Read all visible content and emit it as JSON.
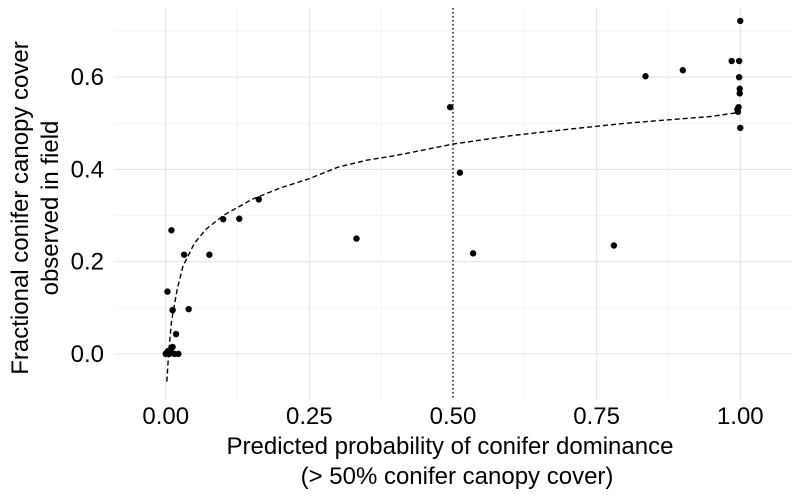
{
  "chart_data": {
    "type": "scatter",
    "title": "",
    "xlabel_lines": [
      "Predicted probability of conifer dominance",
      "(> 50% conifer canopy cover)"
    ],
    "ylabel_lines": [
      "Fractional conifer canopy cover",
      "observed in field"
    ],
    "xlim": [
      -0.09,
      1.09
    ],
    "ylim": [
      -0.1,
      0.75
    ],
    "x_ticks": [
      0.0,
      0.25,
      0.5,
      0.75,
      1.0
    ],
    "x_tick_labels": [
      "0.00",
      "0.25",
      "0.50",
      "0.75",
      "1.00"
    ],
    "y_ticks": [
      0.0,
      0.2,
      0.4,
      0.6
    ],
    "y_tick_labels": [
      "0.0",
      "0.2",
      "0.4",
      "0.6"
    ],
    "grid": true,
    "vline": {
      "x": 0.5,
      "style": "dotted"
    },
    "points": [
      {
        "x": 0.0,
        "y": 0.0
      },
      {
        "x": 0.002,
        "y": 0.003
      },
      {
        "x": 0.004,
        "y": 0.006
      },
      {
        "x": 0.006,
        "y": 0.0
      },
      {
        "x": 0.008,
        "y": 0.009
      },
      {
        "x": 0.01,
        "y": 0.002
      },
      {
        "x": 0.012,
        "y": 0.015
      },
      {
        "x": 0.015,
        "y": 0.0
      },
      {
        "x": 0.003,
        "y": 0.135
      },
      {
        "x": 0.01,
        "y": 0.268
      },
      {
        "x": 0.012,
        "y": 0.095
      },
      {
        "x": 0.018,
        "y": 0.043
      },
      {
        "x": 0.022,
        "y": 0.0
      },
      {
        "x": 0.032,
        "y": 0.215
      },
      {
        "x": 0.04,
        "y": 0.097
      },
      {
        "x": 0.076,
        "y": 0.215
      },
      {
        "x": 0.1,
        "y": 0.292
      },
      {
        "x": 0.128,
        "y": 0.293
      },
      {
        "x": 0.162,
        "y": 0.335
      },
      {
        "x": 0.332,
        "y": 0.25
      },
      {
        "x": 0.495,
        "y": 0.535
      },
      {
        "x": 0.512,
        "y": 0.393
      },
      {
        "x": 0.535,
        "y": 0.218
      },
      {
        "x": 0.78,
        "y": 0.235
      },
      {
        "x": 0.835,
        "y": 0.602
      },
      {
        "x": 0.9,
        "y": 0.615
      },
      {
        "x": 0.985,
        "y": 0.635
      },
      {
        "x": 0.995,
        "y": 0.53
      },
      {
        "x": 0.996,
        "y": 0.525
      },
      {
        "x": 0.997,
        "y": 0.535
      },
      {
        "x": 0.998,
        "y": 0.6
      },
      {
        "x": 0.998,
        "y": 0.635
      },
      {
        "x": 0.999,
        "y": 0.575
      },
      {
        "x": 0.999,
        "y": 0.565
      },
      {
        "x": 1.0,
        "y": 0.722
      },
      {
        "x": 1.0,
        "y": 0.49
      }
    ],
    "trend_line": {
      "style": "dashed",
      "points": [
        {
          "x": 0.002,
          "y": -0.06
        },
        {
          "x": 0.005,
          "y": 0.0
        },
        {
          "x": 0.01,
          "y": 0.07
        },
        {
          "x": 0.02,
          "y": 0.14
        },
        {
          "x": 0.03,
          "y": 0.19
        },
        {
          "x": 0.05,
          "y": 0.24
        },
        {
          "x": 0.07,
          "y": 0.27
        },
        {
          "x": 0.1,
          "y": 0.3
        },
        {
          "x": 0.15,
          "y": 0.335
        },
        {
          "x": 0.2,
          "y": 0.36
        },
        {
          "x": 0.25,
          "y": 0.38
        },
        {
          "x": 0.3,
          "y": 0.405
        },
        {
          "x": 0.35,
          "y": 0.42
        },
        {
          "x": 0.4,
          "y": 0.43
        },
        {
          "x": 0.5,
          "y": 0.455
        },
        {
          "x": 0.6,
          "y": 0.473
        },
        {
          "x": 0.7,
          "y": 0.487
        },
        {
          "x": 0.8,
          "y": 0.5
        },
        {
          "x": 0.9,
          "y": 0.51
        },
        {
          "x": 0.95,
          "y": 0.515
        },
        {
          "x": 1.0,
          "y": 0.524
        }
      ]
    },
    "colors": {
      "points": "#000000",
      "lines": "#000000",
      "grid": "#e5e5e5"
    }
  }
}
